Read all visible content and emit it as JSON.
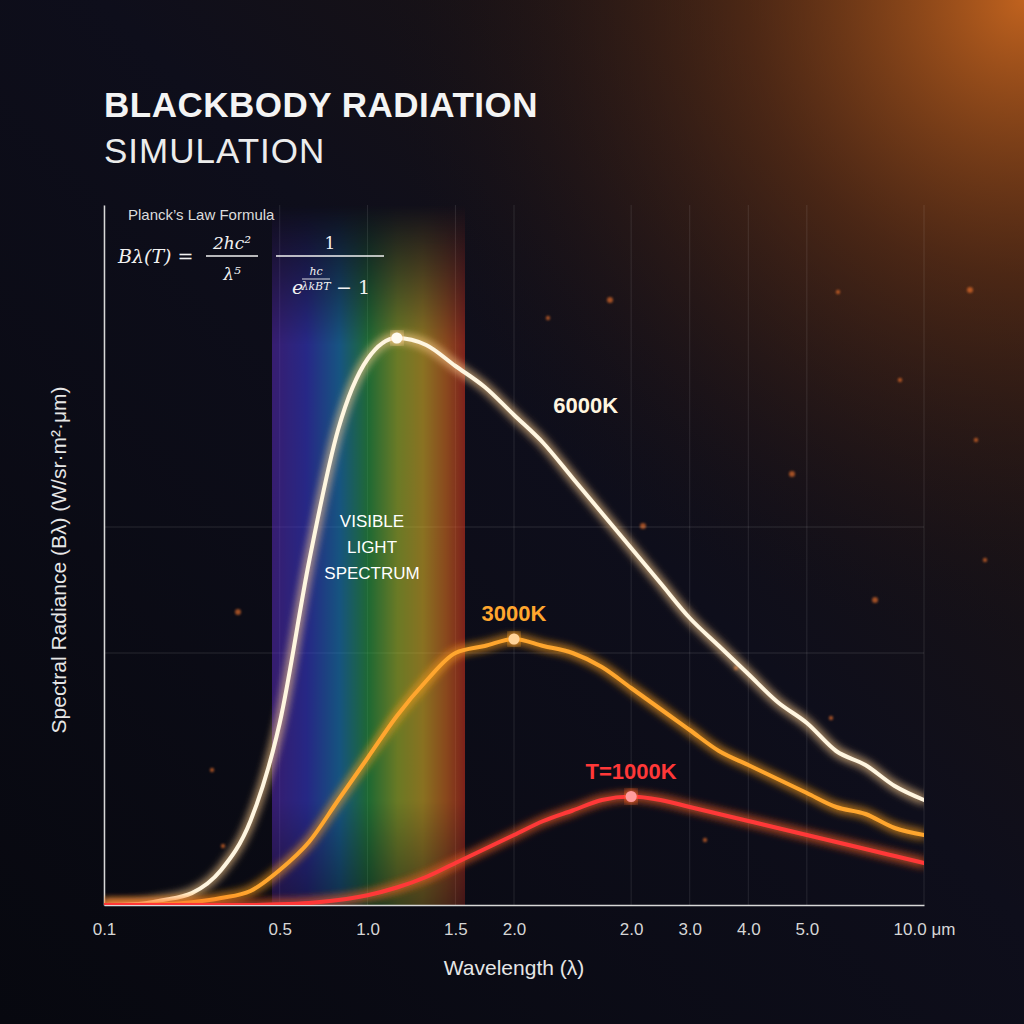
{
  "chart_data": {
    "type": "line",
    "title": "BLACKBODY RADIATION",
    "subtitle": "SIMULATION",
    "formula_title": "Planck’s Law Formula",
    "formula": {
      "lhs": "Bλ(T) =",
      "numerator": "2hc²",
      "denominator": "λ⁵",
      "fraction_numerator": "1",
      "base": "e",
      "exponent_numerator": "hc",
      "exponent_denominator": "λkBT",
      "tail": "− 1"
    },
    "annotation": "VISIBLE LIGHT SPECTRUM",
    "x_label": "Wavelength (λ)",
    "y_label": "Spectral Radiance (Bλ) (W/sr·m²·μm)",
    "categories": [
      "0.1",
      null,
      null,
      null,
      null,
      null,
      "0.5",
      null,
      null,
      "1.0",
      null,
      null,
      "1.5",
      null,
      "2.0",
      null,
      null,
      null,
      "2.0",
      null,
      "3.0",
      null,
      "4.0",
      null,
      "5.0",
      null,
      null,
      null,
      "10.0 μm"
    ],
    "series": [
      {
        "name": "6000K",
        "color": "#fff6e0",
        "values": [
          0,
          0.1,
          0.7,
          1.7,
          5,
          12,
          26,
          49,
          68,
          78,
          81,
          80,
          77,
          74,
          70,
          66,
          61,
          56,
          51,
          46,
          41,
          37,
          33,
          29,
          26,
          22,
          20,
          17,
          15
        ]
      },
      {
        "name": "3000K",
        "color": "#ffa62e",
        "values": [
          0,
          0,
          0.1,
          0.4,
          1,
          2,
          5,
          9,
          15,
          21,
          27,
          32,
          36,
          37,
          38,
          37,
          36,
          34,
          31,
          28,
          25,
          22,
          20,
          18,
          16,
          14,
          13,
          11,
          10
        ]
      },
      {
        "name": "T=1000K",
        "color": "#ff3838",
        "values": [
          0,
          0,
          0,
          0,
          0,
          0,
          0.1,
          0.3,
          0.7,
          1.4,
          2.5,
          4,
          6,
          8,
          10,
          12,
          13.5,
          15,
          15.5,
          15,
          14,
          13,
          12,
          11,
          10,
          9,
          8,
          7,
          6
        ]
      }
    ],
    "ylim": [
      0,
      100
    ],
    "yticks": [
      36,
      54
    ],
    "grid": true,
    "tick_labels": "x",
    "marker": "peak"
  }
}
